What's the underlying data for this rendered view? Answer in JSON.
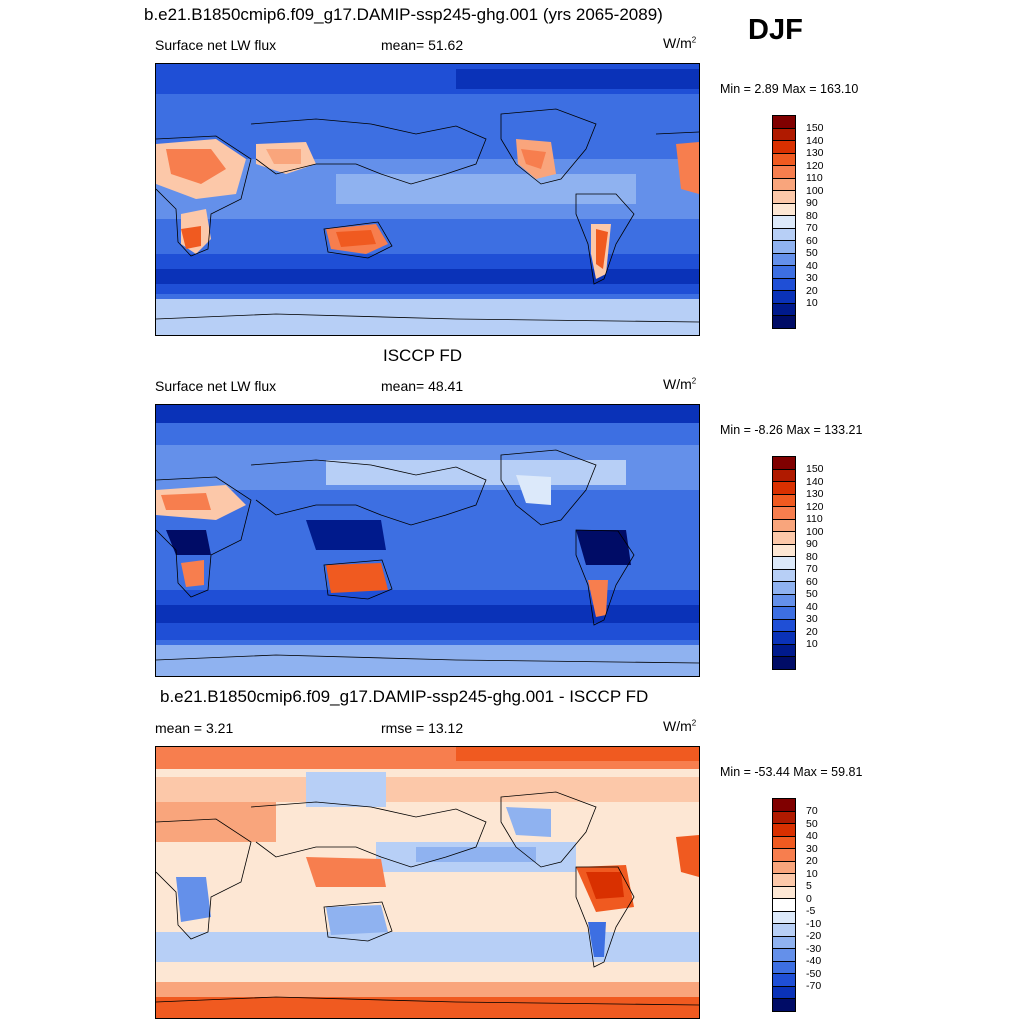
{
  "season": "DJF",
  "panels": [
    {
      "title": "b.e21.B1850cmip6.f09_g17.DAMIP-ssp245-ghg.001 (yrs 2065-2089)",
      "left_label": "Surface net LW flux",
      "center_label": "mean=  51.62",
      "units": "W/m",
      "units_sup": "2",
      "minmax": "Min =   2.89 Max = 163.10",
      "colorbar_labels": [
        "150",
        "140",
        "130",
        "120",
        "110",
        "100",
        "90",
        "80",
        "70",
        "60",
        "50",
        "40",
        "30",
        "20",
        "10"
      ]
    },
    {
      "title": "ISCCP FD",
      "left_label": "Surface net LW flux",
      "center_label": "mean=  48.41",
      "units": "W/m",
      "units_sup": "2",
      "minmax": "Min =  -8.26 Max = 133.21",
      "colorbar_labels": [
        "150",
        "140",
        "130",
        "120",
        "110",
        "100",
        "90",
        "80",
        "70",
        "60",
        "50",
        "40",
        "30",
        "20",
        "10"
      ]
    },
    {
      "title": "b.e21.B1850cmip6.f09_g17.DAMIP-ssp245-ghg.001 - ISCCP FD",
      "left_label": "mean =   3.21",
      "center_label": "rmse =  13.12",
      "units": "W/m",
      "units_sup": "2",
      "minmax": "Min = -53.44 Max =  59.81",
      "colorbar_labels": [
        "70",
        "50",
        "40",
        "30",
        "20",
        "10",
        "5",
        "0",
        "-5",
        "-10",
        "-20",
        "-30",
        "-40",
        "-50",
        "-70"
      ]
    }
  ],
  "colors": {
    "abs_scale": [
      "#800000",
      "#b01a00",
      "#d93000",
      "#f05a20",
      "#f77e4e",
      "#f9a57c",
      "#fcc8a9",
      "#fde7d4",
      "#dce9fa",
      "#b7cff6",
      "#8fb2f0",
      "#6490ea",
      "#3d6fe2",
      "#1f4fd6",
      "#0a32b8",
      "#001a8c",
      "#000c66"
    ],
    "diff_scale": [
      "#800000",
      "#b01a00",
      "#d93000",
      "#f05a20",
      "#f77e4e",
      "#f9a57c",
      "#fcc8a9",
      "#fde7d4",
      "#ffffff",
      "#dce9fa",
      "#b7cff6",
      "#8fb2f0",
      "#6490ea",
      "#3d6fe2",
      "#1f4fd6",
      "#0a32b8",
      "#000c66"
    ]
  }
}
